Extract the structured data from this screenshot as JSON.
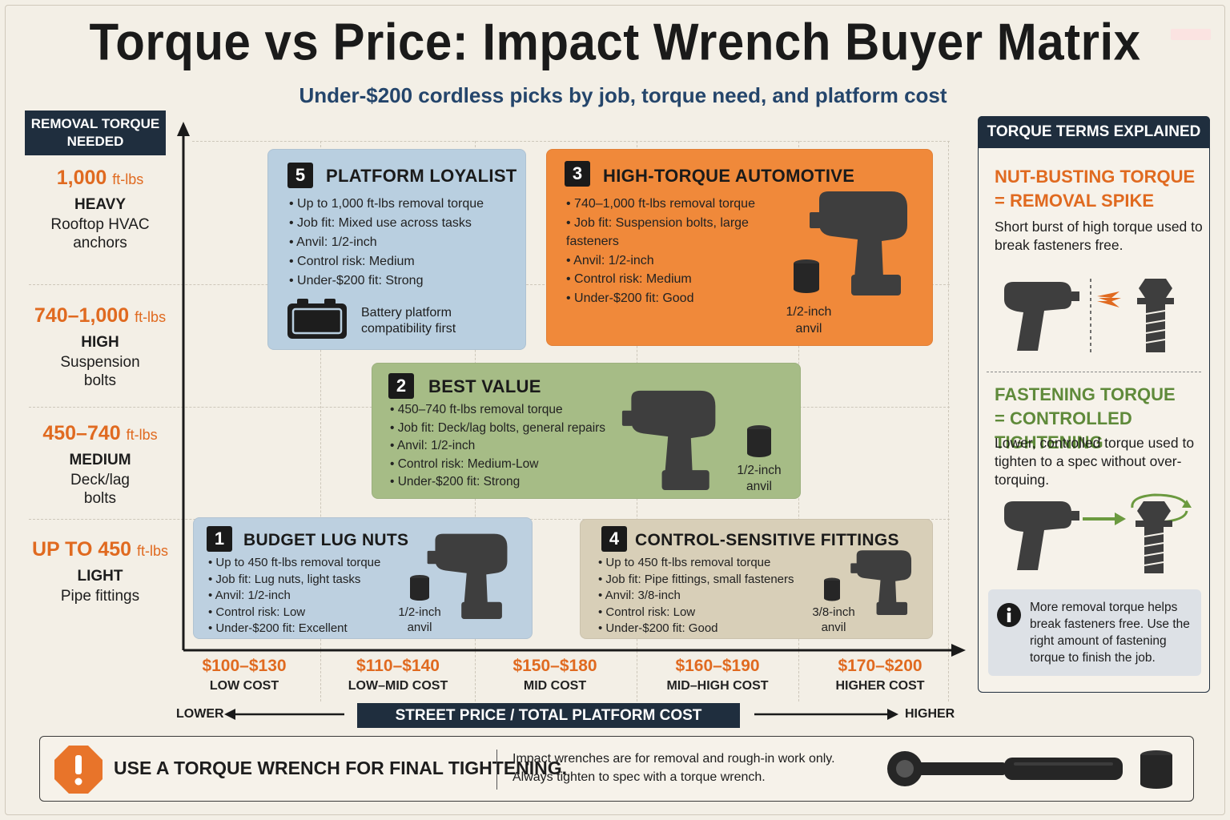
{
  "title": "Torque vs Price: Impact Wrench Buyer Matrix",
  "subtitle": "Under-$200 cordless picks by job, torque need, and platform cost",
  "y_axis": {
    "header": "REMOVAL TORQUE NEEDED",
    "bands": [
      {
        "value": "1,000",
        "unit": "ft-lbs",
        "level": "HEAVY",
        "job": "Rooftop HVAC anchors"
      },
      {
        "value": "740–1,000",
        "unit": "ft-lbs",
        "level": "HIGH",
        "job": "Suspension bolts"
      },
      {
        "value": "450–740",
        "unit": "ft-lbs",
        "level": "MEDIUM",
        "job": "Deck/lag bolts"
      },
      {
        "value": "UP TO 450",
        "unit": "ft-lbs",
        "level": "LIGHT",
        "job": "Pipe fittings"
      }
    ]
  },
  "x_axis": {
    "title": "STREET PRICE / TOTAL PLATFORM COST",
    "lower": "LOWER",
    "higher": "HIGHER",
    "ticks": [
      {
        "price": "$100–$130",
        "label": "LOW COST"
      },
      {
        "price": "$110–$140",
        "label": "LOW–MID COST"
      },
      {
        "price": "$150–$180",
        "label": "MID COST"
      },
      {
        "price": "$160–$190",
        "label": "MID–HIGH COST"
      },
      {
        "price": "$170–$200",
        "label": "HIGHER COST"
      }
    ]
  },
  "cards": {
    "platform": {
      "num": "5",
      "title": "PLATFORM LOYALIST",
      "color": "#b9cfe0",
      "bullets": [
        "Up to 1,000 ft-lbs removal torque",
        "Job fit: Mixed use across tasks",
        "Anvil: 1/2-inch",
        "Control risk: Medium",
        "Under-$200 fit: Strong"
      ],
      "note": "Battery platform compatibility first"
    },
    "automotive": {
      "num": "3",
      "title": "HIGH-TORQUE AUTOMOTIVE",
      "color": "#f0893a",
      "bullets": [
        "740–1,000 ft-lbs removal torque",
        "Job fit: Suspension bolts, large fasteners",
        "Anvil: 1/2-inch",
        "Control risk: Medium",
        "Under-$200 fit: Good"
      ],
      "anvil": "1/2-inch anvil"
    },
    "value": {
      "num": "2",
      "title": "BEST VALUE",
      "color": "#a6bc86",
      "bullets": [
        "450–740 ft-lbs removal torque",
        "Job fit: Deck/lag bolts, general repairs",
        "Anvil: 1/2-inch",
        "Control risk: Medium-Low",
        "Under-$200 fit: Strong"
      ],
      "anvil": "1/2-inch anvil"
    },
    "budget": {
      "num": "1",
      "title": "BUDGET LUG NUTS",
      "color": "#bdd0e0",
      "bullets": [
        "Up to 450 ft-lbs removal torque",
        "Job fit: Lug nuts, light tasks",
        "Anvil: 1/2-inch",
        "Control risk: Low",
        "Under-$200 fit: Excellent"
      ],
      "anvil": "1/2-inch anvil"
    },
    "control": {
      "num": "4",
      "title": "CONTROL-SENSITIVE FITTINGS",
      "color": "#d8cfb8",
      "bullets": [
        "Up to 450 ft-lbs removal torque",
        "Job fit: Pipe fittings, small fasteners",
        "Anvil: 3/8-inch",
        "Control risk: Low",
        "Under-$200 fit: Good"
      ],
      "anvil": "3/8-inch anvil"
    }
  },
  "terms": {
    "header": "TORQUE TERMS EXPLAINED",
    "nut_busting": {
      "title1": "NUT-BUSTING TORQUE",
      "title2": "= REMOVAL SPIKE",
      "desc": "Short burst of high torque used to break fasteners free.",
      "color": "#e06a20"
    },
    "fastening": {
      "title1": "FASTENING TORQUE",
      "title2": "= CONTROLLED TIGHTENING",
      "desc": "Lower, controlled torque used to tighten to a spec without over-torquing.",
      "color": "#5f8a3a"
    },
    "note": "More removal torque helps break fasteners free. Use the right amount of fastening torque to finish the job."
  },
  "banner": {
    "main": "USE A TORQUE WRENCH FOR FINAL TIGHTENING.",
    "sub1": "Impact wrenches are for removal and rough-in work only.",
    "sub2": "Always tighten to spec with a torque wrench."
  },
  "icons": [
    "impact-wrench-icon",
    "socket-icon",
    "battery-icon",
    "bolt-icon",
    "info-icon",
    "warning-icon",
    "torque-wrench-icon"
  ],
  "colors": {
    "accent_orange": "#e06a20",
    "navy": "#1f2e3e",
    "green": "#5f8a3a"
  }
}
